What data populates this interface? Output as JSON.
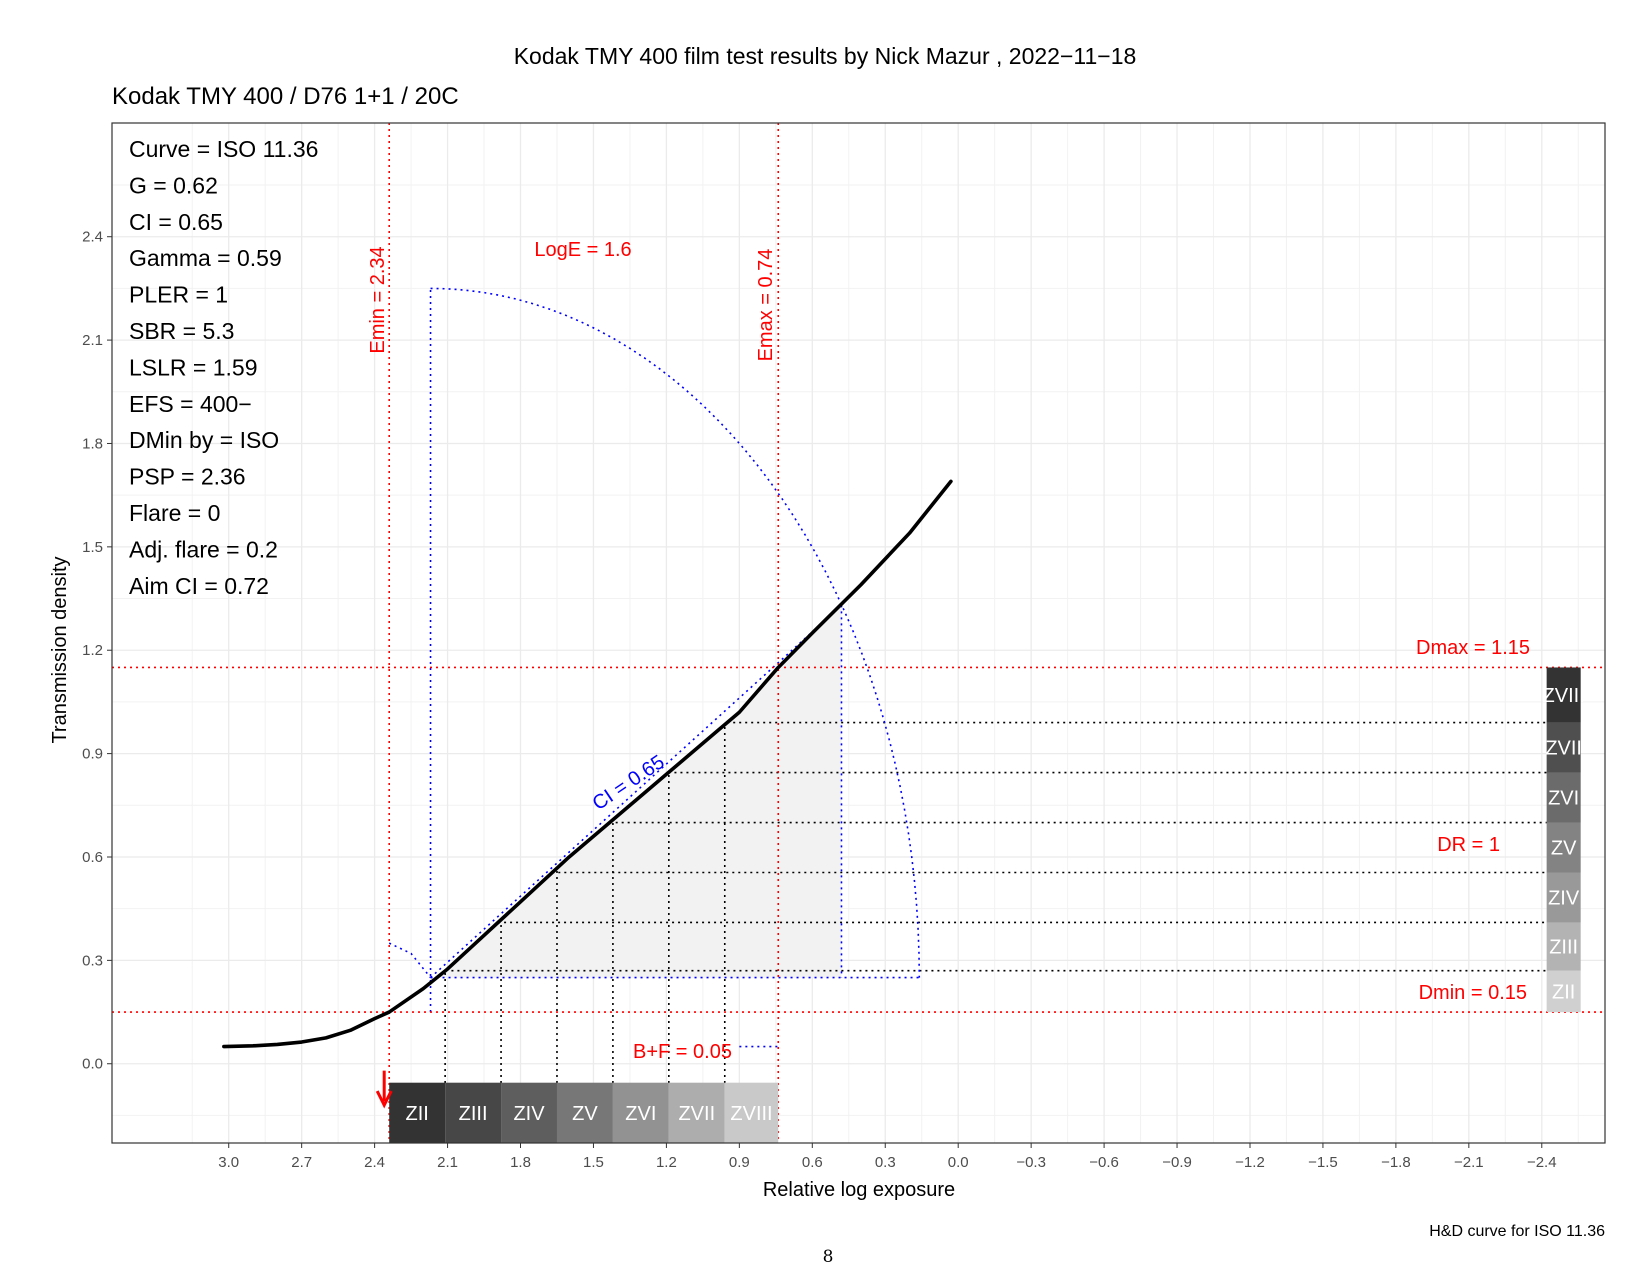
{
  "title": "Kodak TMY 400 film test results by Nick Mazur , 2022−11−18",
  "subtitle": "Kodak TMY 400 / D76 1+1 / 20C",
  "caption": "H&D curve for ISO 11.36",
  "page_number": "8",
  "colors": {
    "ref_lines": "#ff0000",
    "construction": "#0000ff",
    "curve": "#000000",
    "panel_grid": "#ebebeb"
  },
  "stats": [
    "Curve =  ISO 11.36",
    "G =  0.62",
    "CI =  0.65",
    "Gamma =  0.59",
    "PLER =  1",
    "SBR =  5.3",
    "LSLR =  1.59",
    "EFS = 400−",
    "DMin by = ISO",
    "PSP = 2.36",
    "Flare = 0",
    "Adj. flare = 0.2",
    "Aim CI =  0.72"
  ],
  "annotations": {
    "emin": "Emin = 2.34",
    "emax": "Emax = 0.74",
    "loge": "LogE =  1.6",
    "dmax": "Dmax = 1.15",
    "dmin": "Dmin = 0.15",
    "dr": "DR = 1",
    "bf": "B+F =  0.05",
    "ci": "CI = 0.65"
  },
  "chart_data": {
    "type": "line",
    "xlabel": "Relative log exposure",
    "ylabel": "Transmission density",
    "x_reversed": true,
    "xlim": [
      3.48,
      -2.66
    ],
    "ylim": [
      -0.23,
      2.73
    ],
    "x_ticks": [
      "3.0",
      "2.7",
      "2.4",
      "2.1",
      "1.8",
      "1.5",
      "1.2",
      "0.9",
      "0.6",
      "0.3",
      "0.0",
      "−0.3",
      "−0.6",
      "−0.9",
      "−1.2",
      "−1.5",
      "−1.8",
      "−2.1",
      "−2.4"
    ],
    "x_tick_values": [
      3.0,
      2.7,
      2.4,
      2.1,
      1.8,
      1.5,
      1.2,
      0.9,
      0.6,
      0.3,
      0.0,
      -0.3,
      -0.6,
      -0.9,
      -1.2,
      -1.5,
      -1.8,
      -2.1,
      -2.4
    ],
    "y_ticks": [
      "0.0",
      "0.3",
      "0.6",
      "0.9",
      "1.2",
      "1.5",
      "1.8",
      "2.1",
      "2.4"
    ],
    "y_tick_values": [
      0.0,
      0.3,
      0.6,
      0.9,
      1.2,
      1.5,
      1.8,
      2.1,
      2.4
    ],
    "grid": true,
    "series": [
      {
        "x": [
          3.02,
          2.9,
          2.8,
          2.7,
          2.6,
          2.5,
          2.4,
          2.34,
          2.2,
          2.1,
          2.0,
          1.8,
          1.6,
          1.4,
          1.2,
          1.0,
          0.9,
          0.74,
          0.6,
          0.4,
          0.2,
          0.03
        ],
        "y": [
          0.05,
          0.052,
          0.056,
          0.063,
          0.075,
          0.097,
          0.131,
          0.15,
          0.218,
          0.275,
          0.34,
          0.47,
          0.6,
          0.72,
          0.84,
          0.96,
          1.02,
          1.15,
          1.25,
          1.39,
          1.54,
          1.69
        ]
      }
    ],
    "reference_lines": {
      "emin": 2.34,
      "emax": 0.74,
      "dmin": 0.15,
      "dmax": 1.15,
      "base_fog": 0.05
    },
    "zones": {
      "labels": [
        "ZII",
        "ZIII",
        "ZIV",
        "ZV",
        "ZVI",
        "ZVII",
        "ZVIII"
      ],
      "colors": [
        "#333333",
        "#474747",
        "#5e5e5e",
        "#777777",
        "#929292",
        "#adadad",
        "#c9c9c9"
      ],
      "right_colors": [
        "#d0d0d0",
        "#b3b3b3",
        "#999999",
        "#838383",
        "#6b6b6b",
        "#4f4f4f",
        "#333333"
      ],
      "log_exposure": [
        2.34,
        2.11,
        1.88,
        1.65,
        1.42,
        1.19,
        0.96,
        0.74
      ],
      "density": [
        0.15,
        0.27,
        0.41,
        0.555,
        0.7,
        0.845,
        0.99,
        1.15
      ]
    },
    "construction": {
      "ci_line": {
        "x": [
          2.17,
          0.48
        ],
        "y": [
          0.25,
          1.33
        ]
      },
      "baseline_y": 0.25,
      "baseline_x": [
        2.17,
        0.16
      ],
      "vertical_x": 2.17,
      "vertical_y": [
        0.15,
        2.25
      ],
      "drop_x": 0.48,
      "arc_center": [
        2.17,
        0.25
      ],
      "arc_radius_x": 2.01,
      "arc_radius_y": 2.0,
      "small_arc": {
        "x": [
          2.34,
          2.25,
          2.17
        ],
        "y": [
          0.35,
          0.32,
          0.25
        ]
      },
      "bf_line": {
        "x": [
          0.9,
          0.74
        ],
        "y": [
          0.05,
          0.05
        ]
      }
    },
    "arrow": {
      "x": 2.34,
      "y_from": -0.02,
      "y_to": -0.12
    }
  }
}
